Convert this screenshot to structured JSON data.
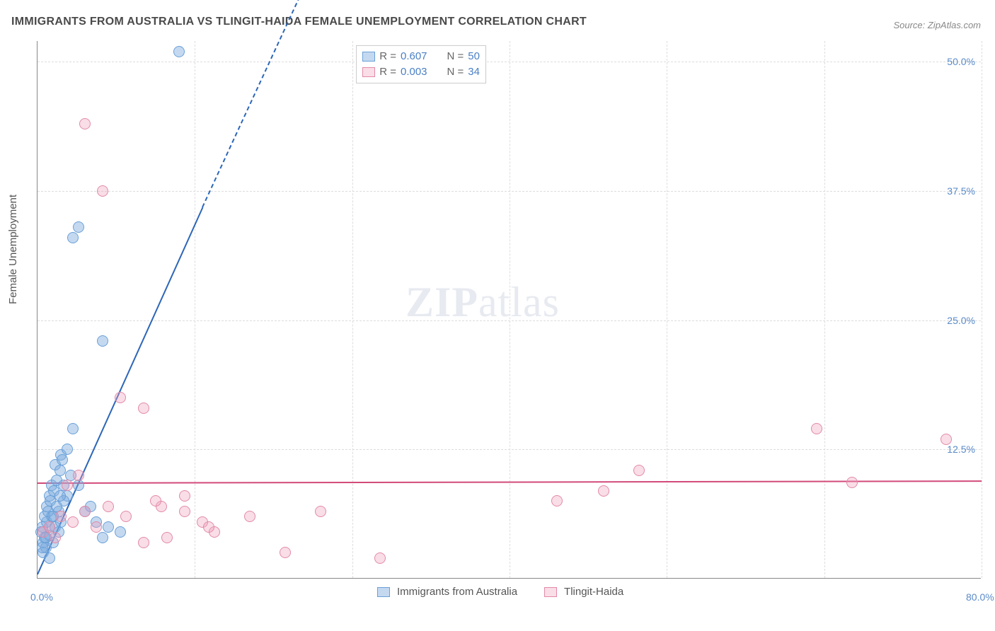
{
  "title": "IMMIGRANTS FROM AUSTRALIA VS TLINGIT-HAIDA FEMALE UNEMPLOYMENT CORRELATION CHART",
  "source": "Source: ZipAtlas.com",
  "y_axis_title": "Female Unemployment",
  "watermark": "ZIPatlas",
  "plot": {
    "type": "scatter",
    "background_color": "#ffffff",
    "grid_color": "#dddddd",
    "axis_color": "#888888",
    "xlim": [
      0,
      80
    ],
    "ylim": [
      0,
      52
    ],
    "x_ticks": [
      {
        "value": 0,
        "label": "0.0%"
      },
      {
        "value": 80,
        "label": "80.0%"
      }
    ],
    "x_tick_positions": [
      13.33,
      26.67,
      40,
      53.33,
      66.67,
      80
    ],
    "y_ticks": [
      {
        "value": 12.5,
        "label": "12.5%"
      },
      {
        "value": 25.0,
        "label": "25.0%"
      },
      {
        "value": 37.5,
        "label": "37.5%"
      },
      {
        "value": 50.0,
        "label": "50.0%"
      }
    ],
    "series": [
      {
        "name": "Immigrants from Australia",
        "marker_fill": "rgba(125,171,222,0.45)",
        "marker_stroke": "#6aa0d8",
        "marker_radius": 8,
        "trend_color": "#2c66b8",
        "trend": {
          "x1": 0,
          "y1": 0.5,
          "x2": 14.0,
          "y2": 36.0,
          "dash_x2": 22.5,
          "dash_y2": 57.0
        },
        "points": [
          [
            0.4,
            5.0
          ],
          [
            0.5,
            3.5
          ],
          [
            0.6,
            4.0
          ],
          [
            0.8,
            5.5
          ],
          [
            1.0,
            4.2
          ],
          [
            1.2,
            6.0
          ],
          [
            1.5,
            5.0
          ],
          [
            1.0,
            8.0
          ],
          [
            1.2,
            9.0
          ],
          [
            1.5,
            11.0
          ],
          [
            2.0,
            12.0
          ],
          [
            2.5,
            12.5
          ],
          [
            2.8,
            10.0
          ],
          [
            3.0,
            14.5
          ],
          [
            2.5,
            8.0
          ],
          [
            3.5,
            9.0
          ],
          [
            4.0,
            6.5
          ],
          [
            4.5,
            7.0
          ],
          [
            5.0,
            5.5
          ],
          [
            5.5,
            4.0
          ],
          [
            6.0,
            5.0
          ],
          [
            7.0,
            4.5
          ],
          [
            1.8,
            6.5
          ],
          [
            2.2,
            7.5
          ],
          [
            0.8,
            7.0
          ],
          [
            3.0,
            33.0
          ],
          [
            3.5,
            34.0
          ],
          [
            5.5,
            23.0
          ],
          [
            12.0,
            51.0
          ],
          [
            0.5,
            2.5
          ],
          [
            0.7,
            3.0
          ],
          [
            1.0,
            2.0
          ],
          [
            1.3,
            3.5
          ],
          [
            0.3,
            4.5
          ],
          [
            1.8,
            4.5
          ],
          [
            2.0,
            5.5
          ],
          [
            0.6,
            6.0
          ],
          [
            0.9,
            6.5
          ],
          [
            1.1,
            7.5
          ],
          [
            1.4,
            8.5
          ],
          [
            1.6,
            9.5
          ],
          [
            1.9,
            10.5
          ],
          [
            2.1,
            11.5
          ],
          [
            0.4,
            3.0
          ],
          [
            0.7,
            4.0
          ],
          [
            1.0,
            5.0
          ],
          [
            1.3,
            6.0
          ],
          [
            1.6,
            7.0
          ],
          [
            1.9,
            8.0
          ],
          [
            2.2,
            9.0
          ]
        ]
      },
      {
        "name": "Tlingit-Haida",
        "marker_fill": "rgba(238,159,185,0.35)",
        "marker_stroke": "#e28aa8",
        "marker_radius": 8,
        "trend_color": "#d24a7a",
        "trend": {
          "x1": 0,
          "y1": 9.3,
          "x2": 80,
          "y2": 9.5
        },
        "points": [
          [
            0.5,
            4.5
          ],
          [
            1.0,
            5.0
          ],
          [
            1.5,
            4.0
          ],
          [
            2.0,
            6.0
          ],
          [
            3.0,
            5.5
          ],
          [
            4.0,
            6.5
          ],
          [
            5.0,
            5.0
          ],
          [
            6.0,
            7.0
          ],
          [
            7.5,
            6.0
          ],
          [
            9.0,
            3.5
          ],
          [
            10.5,
            7.0
          ],
          [
            11.0,
            4.0
          ],
          [
            12.5,
            6.5
          ],
          [
            14.0,
            5.5
          ],
          [
            15.0,
            4.5
          ],
          [
            18.0,
            6.0
          ],
          [
            21.0,
            2.5
          ],
          [
            24.0,
            6.5
          ],
          [
            29.0,
            2.0
          ],
          [
            5.5,
            37.5
          ],
          [
            4.0,
            44.0
          ],
          [
            9.0,
            16.5
          ],
          [
            7.0,
            17.5
          ],
          [
            10.0,
            7.5
          ],
          [
            44.0,
            7.5
          ],
          [
            48.0,
            8.5
          ],
          [
            51.0,
            10.5
          ],
          [
            66.0,
            14.5
          ],
          [
            69.0,
            9.3
          ],
          [
            77.0,
            13.5
          ],
          [
            2.5,
            9.0
          ],
          [
            3.5,
            10.0
          ],
          [
            12.5,
            8.0
          ],
          [
            14.5,
            5.0
          ]
        ]
      }
    ]
  },
  "legend_top": {
    "rows": [
      {
        "swatch_fill": "rgba(125,171,222,0.45)",
        "swatch_stroke": "#6aa0d8",
        "r_label": "R =",
        "r_value": "0.607",
        "n_label": "N =",
        "n_value": "50"
      },
      {
        "swatch_fill": "rgba(238,159,185,0.35)",
        "swatch_stroke": "#e28aa8",
        "r_label": "R =",
        "r_value": "0.003",
        "n_label": "N =",
        "n_value": "34"
      }
    ]
  },
  "legend_bottom": {
    "items": [
      {
        "swatch_fill": "rgba(125,171,222,0.45)",
        "swatch_stroke": "#6aa0d8",
        "label": "Immigrants from Australia"
      },
      {
        "swatch_fill": "rgba(238,159,185,0.35)",
        "swatch_stroke": "#e28aa8",
        "label": "Tlingit-Haida"
      }
    ]
  }
}
